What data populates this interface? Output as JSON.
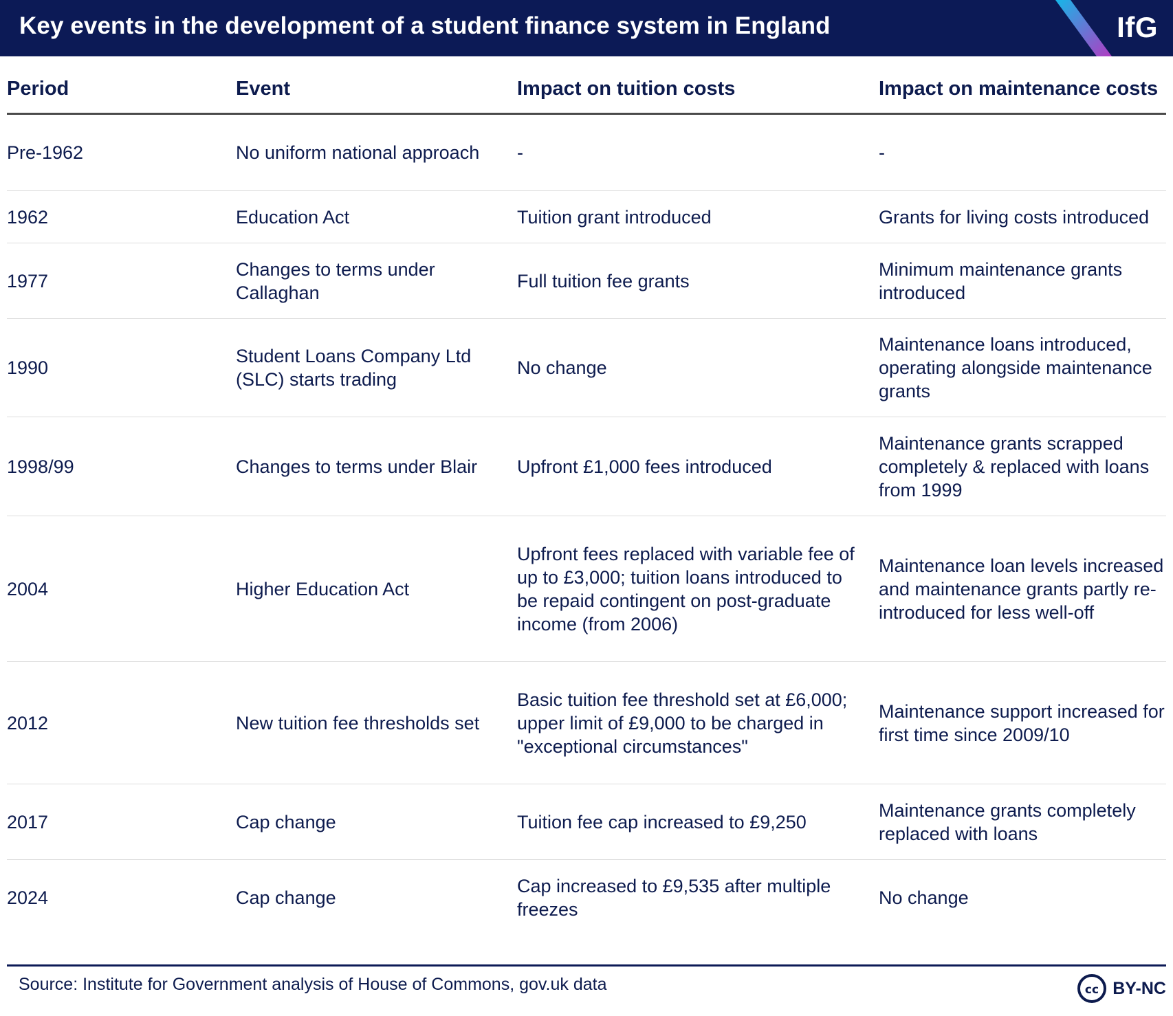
{
  "header": {
    "title": "Key events in the development of a student finance system in England",
    "logo": "IfG",
    "colors": {
      "bar": "#0c1a56",
      "stripe_top": "#16b6e8",
      "stripe_bottom": "#b13cc2"
    }
  },
  "table": {
    "columns": [
      "Period",
      "Event",
      "Impact on tuition costs",
      "Impact on maintenance costs"
    ],
    "rows": [
      [
        "Pre-1962",
        "No uniform national approach",
        "-",
        "-"
      ],
      [
        "1962",
        "Education Act",
        "Tuition grant introduced",
        "Grants for living costs introduced"
      ],
      [
        "1977",
        "Changes to terms under Callaghan",
        "Full tuition fee grants",
        "Minimum maintenance grants introduced"
      ],
      [
        "1990",
        "Student Loans Company Ltd (SLC) starts trading",
        "No change",
        "Maintenance loans introduced, operating alongside maintenance grants"
      ],
      [
        "1998/99",
        "Changes to terms under Blair",
        "Upfront £1,000 fees introduced",
        "Maintenance grants scrapped completely & replaced with loans from 1999"
      ],
      [
        "2004",
        "Higher Education Act",
        "Upfront fees replaced with variable fee of up to £3,000; tuition loans introduced to be repaid contingent on post-graduate income (from 2006)",
        "Maintenance loan levels increased and maintenance grants partly re-introduced for less well-off"
      ],
      [
        "2012",
        "New tuition fee thresholds set",
        "Basic tuition fee threshold set at £6,000; upper limit of £9,000 to be charged in \"exceptional circumstances\"",
        "Maintenance support increased for first time since 2009/10"
      ],
      [
        "2017",
        "Cap change",
        "Tuition fee cap increased to £9,250",
        "Maintenance grants completely replaced with loans"
      ],
      [
        "2024",
        "Cap change",
        "Cap increased to £9,535 after multiple freezes",
        "No change"
      ]
    ]
  },
  "footer": {
    "source": "Source: Institute for Government analysis of House of Commons, gov.uk data",
    "license_icon": "creative-commons-icon",
    "license_label": "BY-NC"
  }
}
